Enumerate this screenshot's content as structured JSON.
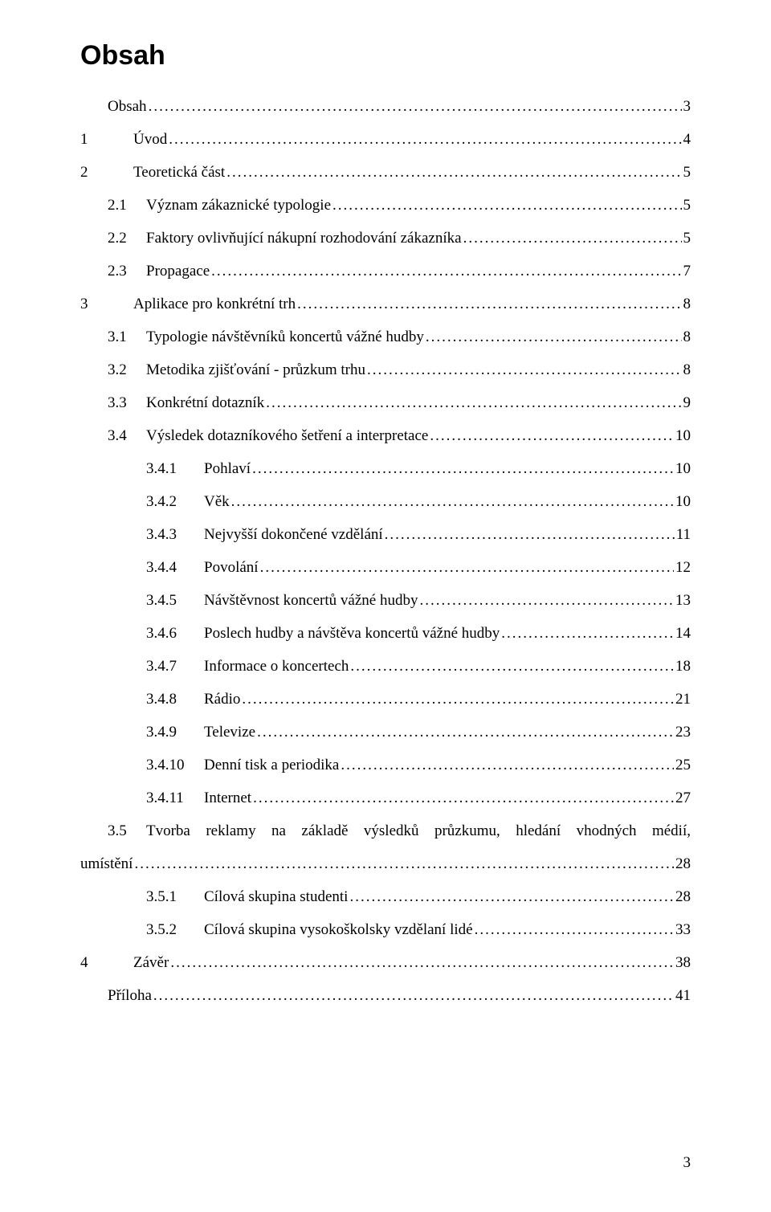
{
  "title": "Obsah",
  "entries": [
    {
      "indent": "indent-0",
      "num": "",
      "label": "Obsah",
      "page": "3"
    },
    {
      "indent": "indent-0b",
      "num": "1",
      "label": "Úvod",
      "page": "4"
    },
    {
      "indent": "indent-0b",
      "num": "2",
      "label": "Teoretická část",
      "page": "5"
    },
    {
      "indent": "indent-1",
      "num": "2.1",
      "label": "Význam zákaznické typologie",
      "page": "5"
    },
    {
      "indent": "indent-1",
      "num": "2.2",
      "label": "Faktory ovlivňující nákupní rozhodování zákazníka",
      "page": "5"
    },
    {
      "indent": "indent-1",
      "num": "2.3",
      "label": "Propagace",
      "page": "7"
    },
    {
      "indent": "indent-0b",
      "num": "3",
      "label": "Aplikace pro konkrétní trh",
      "page": "8"
    },
    {
      "indent": "indent-1",
      "num": "3.1",
      "label": "Typologie návštěvníků koncertů vážné hudby",
      "page": "8"
    },
    {
      "indent": "indent-1",
      "num": "3.2",
      "label": "Metodika zjišťování  - průzkum trhu",
      "page": "8"
    },
    {
      "indent": "indent-1",
      "num": "3.3",
      "label": "Konkrétní dotazník",
      "page": "9"
    },
    {
      "indent": "indent-1",
      "num": "3.4",
      "label": "Výsledek dotazníkového šetření a interpretace",
      "page": "10"
    },
    {
      "indent": "indent-2",
      "num": "3.4.1",
      "label": "Pohlaví",
      "page": "10"
    },
    {
      "indent": "indent-2",
      "num": "3.4.2",
      "label": "Věk",
      "page": "10"
    },
    {
      "indent": "indent-2",
      "num": "3.4.3",
      "label": "Nejvyšší dokončené vzdělání",
      "page": "11"
    },
    {
      "indent": "indent-2",
      "num": "3.4.4",
      "label": "Povolání",
      "page": "12"
    },
    {
      "indent": "indent-2",
      "num": "3.4.5",
      "label": "Návštěvnost koncertů vážné hudby",
      "page": "13"
    },
    {
      "indent": "indent-2",
      "num": "3.4.6",
      "label": "Poslech hudby a návštěva koncertů vážné hudby",
      "page": "14"
    },
    {
      "indent": "indent-2",
      "num": "3.4.7",
      "label": "Informace o koncertech",
      "page": "18"
    },
    {
      "indent": "indent-2",
      "num": "3.4.8",
      "label": "Rádio",
      "page": "21"
    },
    {
      "indent": "indent-2",
      "num": "3.4.9",
      "label": "Televize",
      "page": "23"
    },
    {
      "indent": "indent-2",
      "num": "3.4.10",
      "label": "Denní tisk a periodika",
      "page": "25"
    },
    {
      "indent": "indent-2",
      "num": "3.4.11",
      "label": "Internet",
      "page": "27"
    }
  ],
  "wrap_entry": {
    "num": "3.5",
    "label_line1": "Tvorba reklamy na základě výsledků průzkumu, hledání vhodných médií,",
    "label_line2": "umístění ",
    "page": "28"
  },
  "entries2": [
    {
      "indent": "indent-2",
      "num": "3.5.1",
      "label": "Cílová skupina studenti",
      "page": "28"
    },
    {
      "indent": "indent-2",
      "num": "3.5.2",
      "label": "Cílová skupina vysokoškolsky vzdělaní lidé",
      "page": "33"
    },
    {
      "indent": "indent-0b",
      "num": "4",
      "label": "Závěr",
      "page": "38"
    },
    {
      "indent": "indent-0",
      "num": "",
      "label": "Příloha",
      "page": "41"
    }
  ],
  "footer_page": "3"
}
